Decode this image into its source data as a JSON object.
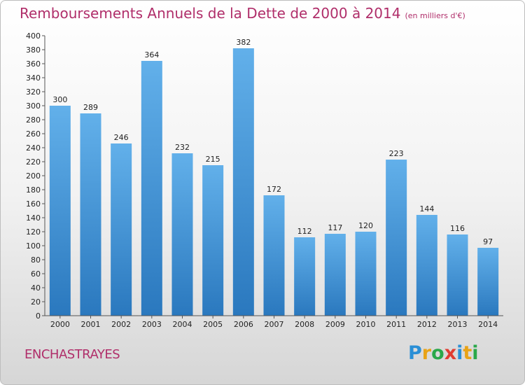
{
  "header": {
    "title": "Remboursements Annuels de la Dette de 2000 à 2014",
    "subtitle": "(en milliers d'€)"
  },
  "footer": {
    "commune": "ENCHASTRAYES",
    "logo_letters": [
      {
        "char": "P",
        "color": "#2a8fd6"
      },
      {
        "char": "r",
        "color": "#e8a317"
      },
      {
        "char": "o",
        "color": "#2aa84a"
      },
      {
        "char": "x",
        "color": "#e03c31"
      },
      {
        "char": "i",
        "color": "#2a8fd6"
      },
      {
        "char": "t",
        "color": "#e8a317"
      },
      {
        "char": "i",
        "color": "#2aa84a"
      }
    ]
  },
  "chart_data": {
    "type": "bar",
    "categories": [
      "2000",
      "2001",
      "2002",
      "2003",
      "2004",
      "2005",
      "2006",
      "2007",
      "2008",
      "2009",
      "2010",
      "2011",
      "2012",
      "2013",
      "2014"
    ],
    "values": [
      300,
      289,
      246,
      364,
      232,
      215,
      382,
      172,
      112,
      117,
      120,
      223,
      144,
      116,
      97
    ],
    "ylim": [
      0,
      400
    ],
    "ytick_step": 20,
    "grid": false,
    "bar_color_top": "#62b0ea",
    "bar_color_bottom": "#2a78be",
    "axis_color": "#555555",
    "tick_label_color": "#222222"
  }
}
